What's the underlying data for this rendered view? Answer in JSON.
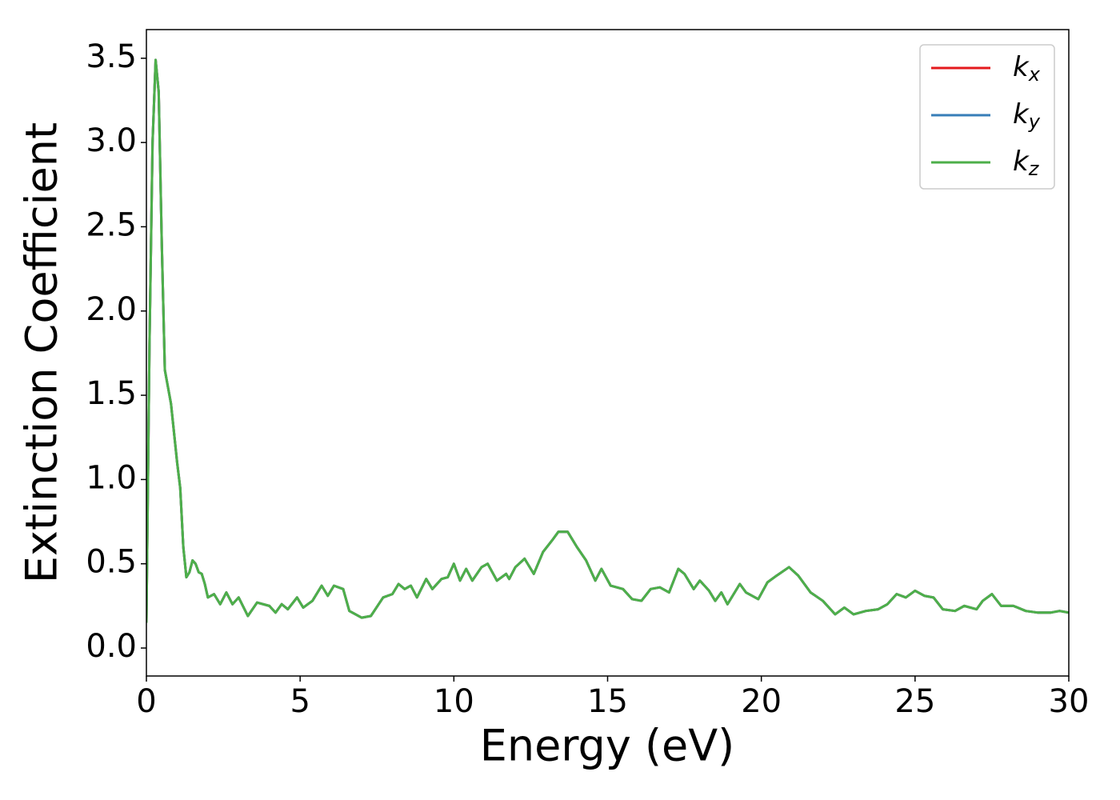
{
  "chart_data": {
    "type": "line",
    "xlabel": "Energy (eV)",
    "ylabel": "Extinction Coefficient",
    "x": [
      0,
      0.1,
      0.2,
      0.3,
      0.4,
      0.5,
      0.6,
      0.8,
      1.0,
      1.1,
      1.2,
      1.3,
      1.4,
      1.5,
      1.6,
      1.7,
      1.8,
      1.9,
      2.0,
      2.2,
      2.4,
      2.6,
      2.8,
      3.0,
      3.3,
      3.6,
      4.0,
      4.2,
      4.4,
      4.6,
      4.9,
      5.1,
      5.4,
      5.7,
      5.9,
      6.1,
      6.4,
      6.6,
      7.0,
      7.3,
      7.7,
      8.0,
      8.2,
      8.4,
      8.6,
      8.8,
      9.1,
      9.3,
      9.6,
      9.8,
      10.0,
      10.2,
      10.4,
      10.6,
      10.9,
      11.1,
      11.4,
      11.7,
      11.8,
      12.0,
      12.3,
      12.6,
      12.9,
      13.2,
      13.4,
      13.7,
      14.0,
      14.3,
      14.6,
      14.8,
      15.1,
      15.5,
      15.8,
      16.1,
      16.4,
      16.7,
      17.0,
      17.3,
      17.5,
      17.8,
      18.0,
      18.3,
      18.5,
      18.7,
      18.9,
      19.3,
      19.5,
      19.9,
      20.2,
      20.5,
      20.9,
      21.2,
      21.6,
      22.0,
      22.4,
      22.7,
      23.0,
      23.4,
      23.8,
      24.1,
      24.4,
      24.7,
      25.0,
      25.3,
      25.6,
      25.9,
      26.3,
      26.6,
      27.0,
      27.2,
      27.5,
      27.8,
      28.2,
      28.6,
      29.0,
      29.4,
      29.7,
      30.0
    ],
    "series": [
      {
        "name": "kx",
        "color": "#e41a1c",
        "values": [
          0.15,
          1.8,
          3.0,
          3.49,
          3.3,
          2.4,
          1.65,
          1.45,
          1.1,
          0.95,
          0.6,
          0.42,
          0.45,
          0.52,
          0.5,
          0.45,
          0.44,
          0.38,
          0.3,
          0.32,
          0.26,
          0.33,
          0.26,
          0.3,
          0.19,
          0.27,
          0.25,
          0.21,
          0.26,
          0.23,
          0.3,
          0.24,
          0.28,
          0.37,
          0.31,
          0.37,
          0.35,
          0.22,
          0.18,
          0.19,
          0.3,
          0.32,
          0.38,
          0.35,
          0.37,
          0.3,
          0.41,
          0.35,
          0.41,
          0.42,
          0.5,
          0.4,
          0.47,
          0.4,
          0.48,
          0.5,
          0.4,
          0.44,
          0.41,
          0.48,
          0.53,
          0.44,
          0.57,
          0.64,
          0.69,
          0.69,
          0.6,
          0.52,
          0.4,
          0.47,
          0.37,
          0.35,
          0.29,
          0.28,
          0.35,
          0.36,
          0.33,
          0.47,
          0.44,
          0.35,
          0.4,
          0.34,
          0.28,
          0.33,
          0.26,
          0.38,
          0.33,
          0.29,
          0.39,
          0.43,
          0.48,
          0.43,
          0.33,
          0.28,
          0.2,
          0.24,
          0.2,
          0.22,
          0.23,
          0.26,
          0.32,
          0.3,
          0.34,
          0.31,
          0.3,
          0.23,
          0.22,
          0.25,
          0.23,
          0.28,
          0.32,
          0.25,
          0.25,
          0.22,
          0.21,
          0.21,
          0.22,
          0.21
        ]
      },
      {
        "name": "ky",
        "color": "#377eb8",
        "values": [
          0.15,
          1.8,
          3.0,
          3.49,
          3.3,
          2.4,
          1.65,
          1.45,
          1.1,
          0.95,
          0.6,
          0.42,
          0.45,
          0.52,
          0.5,
          0.45,
          0.44,
          0.38,
          0.3,
          0.32,
          0.26,
          0.33,
          0.26,
          0.3,
          0.19,
          0.27,
          0.25,
          0.21,
          0.26,
          0.23,
          0.3,
          0.24,
          0.28,
          0.37,
          0.31,
          0.37,
          0.35,
          0.22,
          0.18,
          0.19,
          0.3,
          0.32,
          0.38,
          0.35,
          0.37,
          0.3,
          0.41,
          0.35,
          0.41,
          0.42,
          0.5,
          0.4,
          0.47,
          0.4,
          0.48,
          0.5,
          0.4,
          0.44,
          0.41,
          0.48,
          0.53,
          0.44,
          0.57,
          0.64,
          0.69,
          0.69,
          0.6,
          0.52,
          0.4,
          0.47,
          0.37,
          0.35,
          0.29,
          0.28,
          0.35,
          0.36,
          0.33,
          0.47,
          0.44,
          0.35,
          0.4,
          0.34,
          0.28,
          0.33,
          0.26,
          0.38,
          0.33,
          0.29,
          0.39,
          0.43,
          0.48,
          0.43,
          0.33,
          0.28,
          0.2,
          0.24,
          0.2,
          0.22,
          0.23,
          0.26,
          0.32,
          0.3,
          0.34,
          0.31,
          0.3,
          0.23,
          0.22,
          0.25,
          0.23,
          0.28,
          0.32,
          0.25,
          0.25,
          0.22,
          0.21,
          0.21,
          0.22,
          0.21
        ]
      },
      {
        "name": "kz",
        "color": "#4daf4a",
        "values": [
          0.15,
          1.8,
          3.0,
          3.49,
          3.3,
          2.4,
          1.65,
          1.45,
          1.1,
          0.95,
          0.6,
          0.42,
          0.45,
          0.52,
          0.5,
          0.45,
          0.44,
          0.38,
          0.3,
          0.32,
          0.26,
          0.33,
          0.26,
          0.3,
          0.19,
          0.27,
          0.25,
          0.21,
          0.26,
          0.23,
          0.3,
          0.24,
          0.28,
          0.37,
          0.31,
          0.37,
          0.35,
          0.22,
          0.18,
          0.19,
          0.3,
          0.32,
          0.38,
          0.35,
          0.37,
          0.3,
          0.41,
          0.35,
          0.41,
          0.42,
          0.5,
          0.4,
          0.47,
          0.4,
          0.48,
          0.5,
          0.4,
          0.44,
          0.41,
          0.48,
          0.53,
          0.44,
          0.57,
          0.64,
          0.69,
          0.69,
          0.6,
          0.52,
          0.4,
          0.47,
          0.37,
          0.35,
          0.29,
          0.28,
          0.35,
          0.36,
          0.33,
          0.47,
          0.44,
          0.35,
          0.4,
          0.34,
          0.28,
          0.33,
          0.26,
          0.38,
          0.33,
          0.29,
          0.39,
          0.43,
          0.48,
          0.43,
          0.33,
          0.28,
          0.2,
          0.24,
          0.2,
          0.22,
          0.23,
          0.26,
          0.32,
          0.3,
          0.34,
          0.31,
          0.3,
          0.23,
          0.22,
          0.25,
          0.23,
          0.28,
          0.32,
          0.25,
          0.25,
          0.22,
          0.21,
          0.21,
          0.22,
          0.21
        ]
      }
    ],
    "xlim": [
      0,
      30
    ],
    "xticks": [
      0,
      5,
      10,
      15,
      20,
      25,
      30
    ],
    "ylim": [
      -0.166,
      3.67
    ],
    "yticks": [
      {
        "value": 0,
        "label": "0.0"
      },
      0.5,
      {
        "value": 1,
        "label": "1.0"
      },
      1.5,
      {
        "value": 2,
        "label": "2.0"
      },
      2.5,
      {
        "value": 3,
        "label": "3.0"
      },
      3.5
    ],
    "grid": false,
    "legend": "upper right"
  }
}
